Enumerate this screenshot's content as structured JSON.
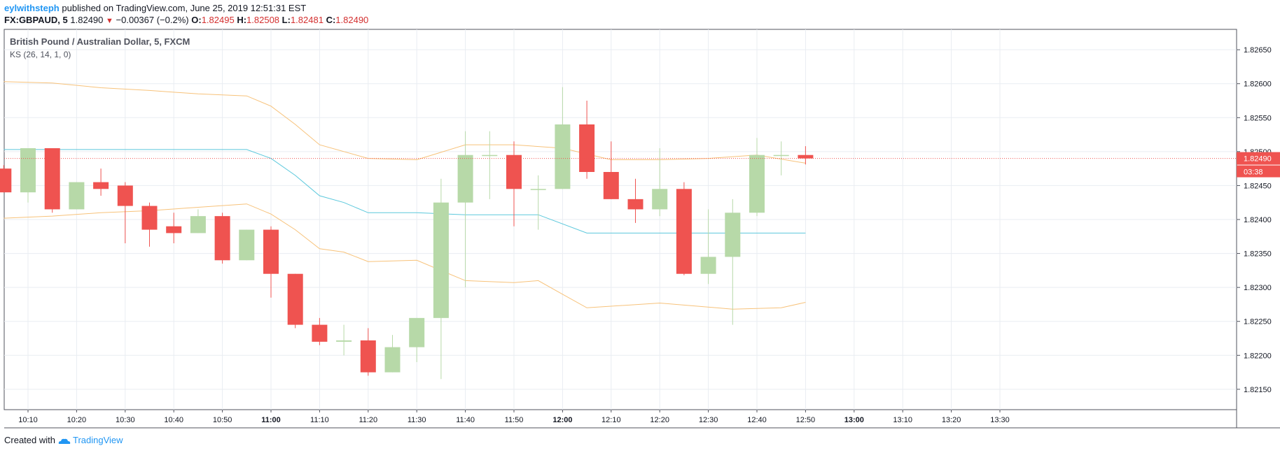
{
  "header": {
    "author": "eylwithsteph",
    "published_text": "published on TradingView.com, June 25, 2019 12:51:31 EST",
    "symbol": "FX:GBPAUD, 5",
    "last": "1.82490",
    "change_arrow": "▼",
    "change": "−0.00367 (−0.2%)",
    "o_label": "O:",
    "o_value": "1.82495",
    "h_label": "H:",
    "h_value": "1.82508",
    "l_label": "L:",
    "l_value": "1.82481",
    "c_label": "C:",
    "c_value": "1.82490"
  },
  "footer": {
    "created_with": "Created with",
    "brand": "TradingView"
  },
  "colors": {
    "up": "#b7d9a8",
    "down": "#ef5350",
    "base_line": "#5bc8dc",
    "band_line": "#f7c27a",
    "price_label_bg": "#ef5350",
    "grid": "#e9edf2"
  },
  "chart_data": {
    "type": "candlestick",
    "title": "British Pound / Australian Dollar, 5, FXCM",
    "indicator_label": "KS (26, 14, 1, 0)",
    "grid": true,
    "y_range": [
      1.8212,
      1.8268
    ],
    "y_ticks": [
      "1.82150",
      "1.82200",
      "1.82250",
      "1.82300",
      "1.82350",
      "1.82400",
      "1.82450",
      "1.82500",
      "1.82550",
      "1.82600",
      "1.82650"
    ],
    "x_ticks": [
      "10:10",
      "10:20",
      "10:30",
      "10:40",
      "10:50",
      "11:00",
      "11:10",
      "11:20",
      "11:30",
      "11:40",
      "11:50",
      "12:00",
      "12:10",
      "12:20",
      "12:30",
      "12:40",
      "12:50",
      "13:00",
      "13:10",
      "13:20",
      "13:30"
    ],
    "current_price": "1.82490",
    "countdown": "03:38",
    "candles": [
      {
        "t": "10:05",
        "o": 1.82475,
        "h": 1.8248,
        "l": 1.8244,
        "c": 1.8244
      },
      {
        "t": "10:10",
        "o": 1.8244,
        "h": 1.82505,
        "l": 1.82425,
        "c": 1.82505
      },
      {
        "t": "10:15",
        "o": 1.82505,
        "h": 1.82505,
        "l": 1.8241,
        "c": 1.82415
      },
      {
        "t": "10:20",
        "o": 1.82415,
        "h": 1.82455,
        "l": 1.82415,
        "c": 1.82455
      },
      {
        "t": "10:25",
        "o": 1.82455,
        "h": 1.82475,
        "l": 1.82435,
        "c": 1.82445
      },
      {
        "t": "10:30",
        "o": 1.8245,
        "h": 1.82455,
        "l": 1.82365,
        "c": 1.8242
      },
      {
        "t": "10:35",
        "o": 1.8242,
        "h": 1.82425,
        "l": 1.8236,
        "c": 1.82385
      },
      {
        "t": "10:40",
        "o": 1.8239,
        "h": 1.8241,
        "l": 1.82365,
        "c": 1.8238
      },
      {
        "t": "10:45",
        "o": 1.8238,
        "h": 1.82415,
        "l": 1.8238,
        "c": 1.82405
      },
      {
        "t": "10:50",
        "o": 1.82405,
        "h": 1.8241,
        "l": 1.82335,
        "c": 1.8234
      },
      {
        "t": "10:55",
        "o": 1.8234,
        "h": 1.82385,
        "l": 1.8234,
        "c": 1.82385
      },
      {
        "t": "11:00",
        "o": 1.82385,
        "h": 1.8239,
        "l": 1.82285,
        "c": 1.8232
      },
      {
        "t": "11:05",
        "o": 1.8232,
        "h": 1.8232,
        "l": 1.8224,
        "c": 1.82245
      },
      {
        "t": "11:10",
        "o": 1.82245,
        "h": 1.82255,
        "l": 1.82215,
        "c": 1.8222
      },
      {
        "t": "11:15",
        "o": 1.8222,
        "h": 1.82245,
        "l": 1.822,
        "c": 1.82222
      },
      {
        "t": "11:20",
        "o": 1.82222,
        "h": 1.8224,
        "l": 1.8217,
        "c": 1.82175
      },
      {
        "t": "11:25",
        "o": 1.82175,
        "h": 1.8223,
        "l": 1.82175,
        "c": 1.82212
      },
      {
        "t": "11:30",
        "o": 1.82212,
        "h": 1.82255,
        "l": 1.8219,
        "c": 1.82255
      },
      {
        "t": "11:35",
        "o": 1.82255,
        "h": 1.8246,
        "l": 1.82165,
        "c": 1.82425
      },
      {
        "t": "11:40",
        "o": 1.82425,
        "h": 1.8253,
        "l": 1.823,
        "c": 1.82495
      },
      {
        "t": "11:45",
        "o": 1.82495,
        "h": 1.8253,
        "l": 1.8243,
        "c": 1.82495
      },
      {
        "t": "11:50",
        "o": 1.82495,
        "h": 1.82515,
        "l": 1.8239,
        "c": 1.82445
      },
      {
        "t": "11:55",
        "o": 1.82445,
        "h": 1.82465,
        "l": 1.82385,
        "c": 1.82445
      },
      {
        "t": "12:00",
        "o": 1.82445,
        "h": 1.82595,
        "l": 1.82445,
        "c": 1.8254
      },
      {
        "t": "12:05",
        "o": 1.8254,
        "h": 1.82575,
        "l": 1.8246,
        "c": 1.8247
      },
      {
        "t": "12:10",
        "o": 1.8247,
        "h": 1.82515,
        "l": 1.8243,
        "c": 1.8243
      },
      {
        "t": "12:15",
        "o": 1.8243,
        "h": 1.8246,
        "l": 1.82395,
        "c": 1.82415
      },
      {
        "t": "12:20",
        "o": 1.82415,
        "h": 1.82505,
        "l": 1.82405,
        "c": 1.82445
      },
      {
        "t": "12:25",
        "o": 1.82445,
        "h": 1.82455,
        "l": 1.82318,
        "c": 1.8232
      },
      {
        "t": "12:30",
        "o": 1.8232,
        "h": 1.82415,
        "l": 1.82305,
        "c": 1.82345
      },
      {
        "t": "12:35",
        "o": 1.82345,
        "h": 1.8243,
        "l": 1.82245,
        "c": 1.8241
      },
      {
        "t": "12:40",
        "o": 1.8241,
        "h": 1.8252,
        "l": 1.82405,
        "c": 1.82495
      },
      {
        "t": "12:45",
        "o": 1.82495,
        "h": 1.82515,
        "l": 1.82465,
        "c": 1.82495
      },
      {
        "t": "12:50",
        "o": 1.82495,
        "h": 1.82508,
        "l": 1.82481,
        "c": 1.8249
      }
    ],
    "series": [
      {
        "name": "upper",
        "points": [
          [
            "10:05",
            1.82603
          ],
          [
            "10:15",
            1.82601
          ],
          [
            "10:25",
            1.82594
          ],
          [
            "10:35",
            1.8259
          ],
          [
            "10:45",
            1.82585
          ],
          [
            "10:55",
            1.82582
          ],
          [
            "11:00",
            1.82567
          ],
          [
            "11:05",
            1.8254
          ],
          [
            "11:10",
            1.8251
          ],
          [
            "11:20",
            1.8249
          ],
          [
            "11:30",
            1.82488
          ],
          [
            "11:40",
            1.8251
          ],
          [
            "11:50",
            1.8251
          ],
          [
            "12:00",
            1.82505
          ],
          [
            "12:10",
            1.82488
          ],
          [
            "12:20",
            1.82488
          ],
          [
            "12:30",
            1.8249
          ],
          [
            "12:40",
            1.82495
          ],
          [
            "12:50",
            1.82483
          ]
        ]
      },
      {
        "name": "base",
        "points": [
          [
            "10:05",
            1.82503
          ],
          [
            "10:55",
            1.82503
          ],
          [
            "11:00",
            1.8249
          ],
          [
            "11:05",
            1.82465
          ],
          [
            "11:10",
            1.82435
          ],
          [
            "11:15",
            1.82425
          ],
          [
            "11:20",
            1.8241
          ],
          [
            "11:30",
            1.8241
          ],
          [
            "11:40",
            1.82407
          ],
          [
            "11:55",
            1.82407
          ],
          [
            "12:05",
            1.8238
          ],
          [
            "12:50",
            1.8238
          ]
        ]
      },
      {
        "name": "lower",
        "points": [
          [
            "10:05",
            1.82402
          ],
          [
            "10:15",
            1.82405
          ],
          [
            "10:25",
            1.8241
          ],
          [
            "10:35",
            1.82413
          ],
          [
            "10:45",
            1.82418
          ],
          [
            "10:55",
            1.82423
          ],
          [
            "11:00",
            1.82408
          ],
          [
            "11:05",
            1.82385
          ],
          [
            "11:10",
            1.82357
          ],
          [
            "11:15",
            1.82352
          ],
          [
            "11:20",
            1.82338
          ],
          [
            "11:30",
            1.8234
          ],
          [
            "11:35",
            1.82325
          ],
          [
            "11:40",
            1.8231
          ],
          [
            "11:50",
            1.82307
          ],
          [
            "11:55",
            1.8231
          ],
          [
            "12:00",
            1.8229
          ],
          [
            "12:05",
            1.8227
          ],
          [
            "12:20",
            1.82277
          ],
          [
            "12:35",
            1.82268
          ],
          [
            "12:45",
            1.8227
          ],
          [
            "12:50",
            1.82278
          ]
        ]
      }
    ]
  }
}
